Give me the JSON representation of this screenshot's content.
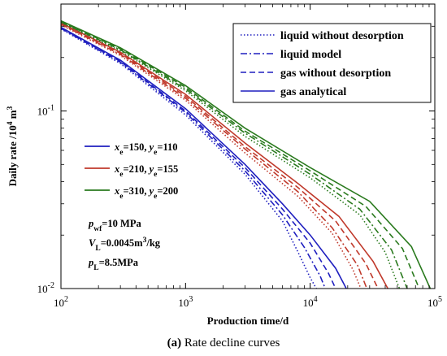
{
  "caption": {
    "letter": "(a)",
    "text": " Rate decline curves"
  },
  "chart_data": {
    "type": "line",
    "title": "",
    "xlabel": "Production time/d",
    "ylabel": "Daily rate /10⁴ m³",
    "xscale": "log",
    "yscale": "log",
    "xlim": [
      100,
      100000
    ],
    "ylim": [
      0.01,
      0.4
    ],
    "x_ticks": [
      {
        "value": 100,
        "base": "10",
        "exp": "2"
      },
      {
        "value": 1000,
        "base": "10",
        "exp": "3"
      },
      {
        "value": 10000,
        "base": "10",
        "exp": "4"
      },
      {
        "value": 100000,
        "base": "10",
        "exp": "5"
      }
    ],
    "y_ticks": [
      {
        "value": 0.01,
        "base": "10",
        "exp": "-2"
      },
      {
        "value": 0.1,
        "base": "10",
        "exp": "-1"
      }
    ],
    "grid": false,
    "legend": {
      "placement": "top-right",
      "entries": [
        {
          "label": "liquid without desorption",
          "dash": "dotted"
        },
        {
          "label": "liquid model",
          "dash": "dashdot"
        },
        {
          "label": "gas without desorption",
          "dash": "dashed"
        },
        {
          "label": "gas analytical",
          "dash": "solid"
        }
      ]
    },
    "groups": [
      {
        "color": "#1f1fbf",
        "label": [
          {
            "t": "x"
          },
          {
            "t": "e",
            "sub": true
          },
          {
            "t": "=150, "
          },
          {
            "t": "y"
          },
          {
            "t": "e",
            "sub": true
          },
          {
            "t": "=110"
          }
        ]
      },
      {
        "color": "#c0392b",
        "label": [
          {
            "t": "x"
          },
          {
            "t": "e",
            "sub": true
          },
          {
            "t": "=210, "
          },
          {
            "t": "y"
          },
          {
            "t": "e",
            "sub": true
          },
          {
            "t": "=155"
          }
        ]
      },
      {
        "color": "#2a7a1e",
        "label": [
          {
            "t": "x"
          },
          {
            "t": "e",
            "sub": true
          },
          {
            "t": "=310, "
          },
          {
            "t": "y"
          },
          {
            "t": "e",
            "sub": true
          },
          {
            "t": "=200"
          }
        ]
      }
    ],
    "annotations": [
      [
        {
          "t": "p"
        },
        {
          "t": "wf",
          "sub": true
        },
        {
          "t": "=10 MPa"
        }
      ],
      [
        {
          "t": "V"
        },
        {
          "t": "L",
          "sub": true
        },
        {
          "t": "=0.0045m"
        },
        {
          "t": "3",
          "sup": true
        },
        {
          "t": "/kg"
        }
      ],
      [
        {
          "t": "p"
        },
        {
          "t": "L",
          "sub": true
        },
        {
          "t": "=8.5MPa"
        }
      ]
    ],
    "series": [
      {
        "group": 0,
        "style": "dotted",
        "x": [
          100,
          300,
          1000,
          3000,
          6000,
          8000,
          10000,
          11200
        ],
        "y": [
          0.29,
          0.185,
          0.095,
          0.044,
          0.024,
          0.016,
          0.0115,
          0.01
        ]
      },
      {
        "group": 0,
        "style": "dashdot",
        "x": [
          100,
          300,
          1000,
          3000,
          6000,
          9000,
          12000,
          13200
        ],
        "y": [
          0.292,
          0.188,
          0.098,
          0.046,
          0.026,
          0.017,
          0.0118,
          0.01
        ]
      },
      {
        "group": 0,
        "style": "dashed",
        "x": [
          100,
          300,
          1000,
          3000,
          6000,
          10000,
          14000,
          16000
        ],
        "y": [
          0.294,
          0.19,
          0.1,
          0.048,
          0.028,
          0.018,
          0.0122,
          0.01
        ]
      },
      {
        "group": 0,
        "style": "solid",
        "x": [
          100,
          300,
          1000,
          3000,
          6000,
          10000,
          16000,
          19500
        ],
        "y": [
          0.296,
          0.193,
          0.103,
          0.05,
          0.03,
          0.02,
          0.013,
          0.01
        ]
      },
      {
        "group": 1,
        "style": "dotted",
        "x": [
          100,
          300,
          1000,
          3000,
          8000,
          15000,
          22000,
          25500
        ],
        "y": [
          0.305,
          0.205,
          0.115,
          0.058,
          0.033,
          0.0205,
          0.0128,
          0.01
        ]
      },
      {
        "group": 1,
        "style": "dashdot",
        "x": [
          100,
          300,
          1000,
          3000,
          8000,
          15000,
          24000,
          28500
        ],
        "y": [
          0.308,
          0.208,
          0.118,
          0.061,
          0.035,
          0.022,
          0.0135,
          0.01
        ]
      },
      {
        "group": 1,
        "style": "dashed",
        "x": [
          100,
          300,
          1000,
          3000,
          8000,
          16000,
          28000,
          35000
        ],
        "y": [
          0.31,
          0.211,
          0.121,
          0.063,
          0.037,
          0.024,
          0.0138,
          0.01
        ]
      },
      {
        "group": 1,
        "style": "solid",
        "x": [
          100,
          300,
          1000,
          3000,
          8000,
          17000,
          32000,
          42000
        ],
        "y": [
          0.313,
          0.214,
          0.124,
          0.066,
          0.039,
          0.0255,
          0.0142,
          0.01
        ]
      },
      {
        "group": 2,
        "style": "dotted",
        "x": [
          100,
          300,
          1000,
          3000,
          10000,
          25000,
          40000,
          52000
        ],
        "y": [
          0.315,
          0.218,
          0.13,
          0.072,
          0.042,
          0.026,
          0.016,
          0.01
        ]
      },
      {
        "group": 2,
        "style": "dashdot",
        "x": [
          100,
          300,
          1000,
          3000,
          10000,
          25000,
          45000,
          60000
        ],
        "y": [
          0.317,
          0.221,
          0.133,
          0.075,
          0.044,
          0.028,
          0.0165,
          0.01
        ]
      },
      {
        "group": 2,
        "style": "dashed",
        "x": [
          100,
          300,
          1000,
          3000,
          10000,
          28000,
          55000,
          75000
        ],
        "y": [
          0.319,
          0.224,
          0.136,
          0.077,
          0.046,
          0.029,
          0.0168,
          0.01
        ]
      },
      {
        "group": 2,
        "style": "solid",
        "x": [
          100,
          300,
          1000,
          3000,
          10000,
          30000,
          65000,
          92000
        ],
        "y": [
          0.322,
          0.227,
          0.139,
          0.08,
          0.048,
          0.031,
          0.0172,
          0.01
        ]
      }
    ]
  }
}
